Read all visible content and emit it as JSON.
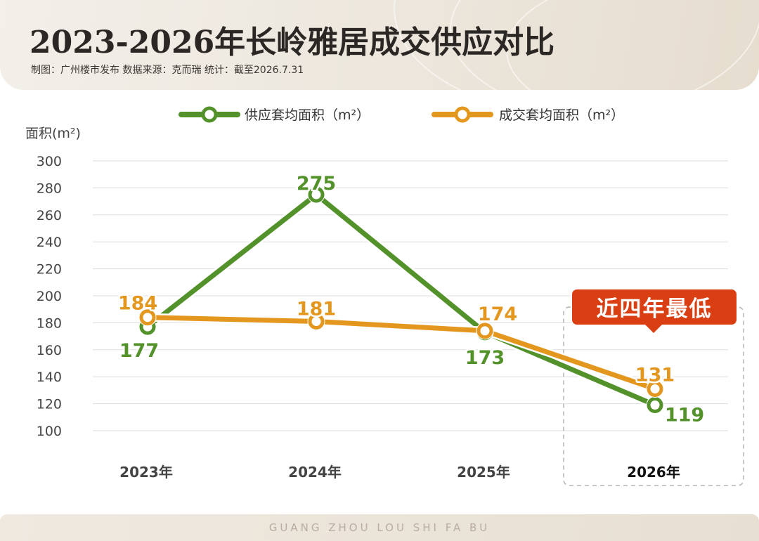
{
  "header": {
    "title": "2023-2026年长岭雅居成交供应对比",
    "subtitle": "制图：广州楼市发布    数据来源：克而瑞    统计：截至2026.7.31"
  },
  "footer": {
    "text": "GUANG ZHOU LOU SHI FA BU"
  },
  "chart_data": {
    "type": "line",
    "categories": [
      "2023年",
      "2024年",
      "2025年",
      "2026年"
    ],
    "ylabel": "面积(m²)",
    "ylim": [
      100,
      300
    ],
    "yticks": [
      300,
      280,
      260,
      240,
      220,
      200,
      180,
      160,
      140,
      120,
      100
    ],
    "grid": true,
    "legend_position": "top",
    "series": [
      {
        "name": "供应套均面积（m²）",
        "color": "#53922a",
        "values": [
          177,
          275,
          173,
          119
        ]
      },
      {
        "name": "成交套均面积（m²）",
        "color": "#e4971f",
        "values": [
          184,
          181,
          174,
          131
        ]
      }
    ],
    "annotation": {
      "text": "近四年最低",
      "color": "#d93f12",
      "category": "2026年"
    }
  }
}
